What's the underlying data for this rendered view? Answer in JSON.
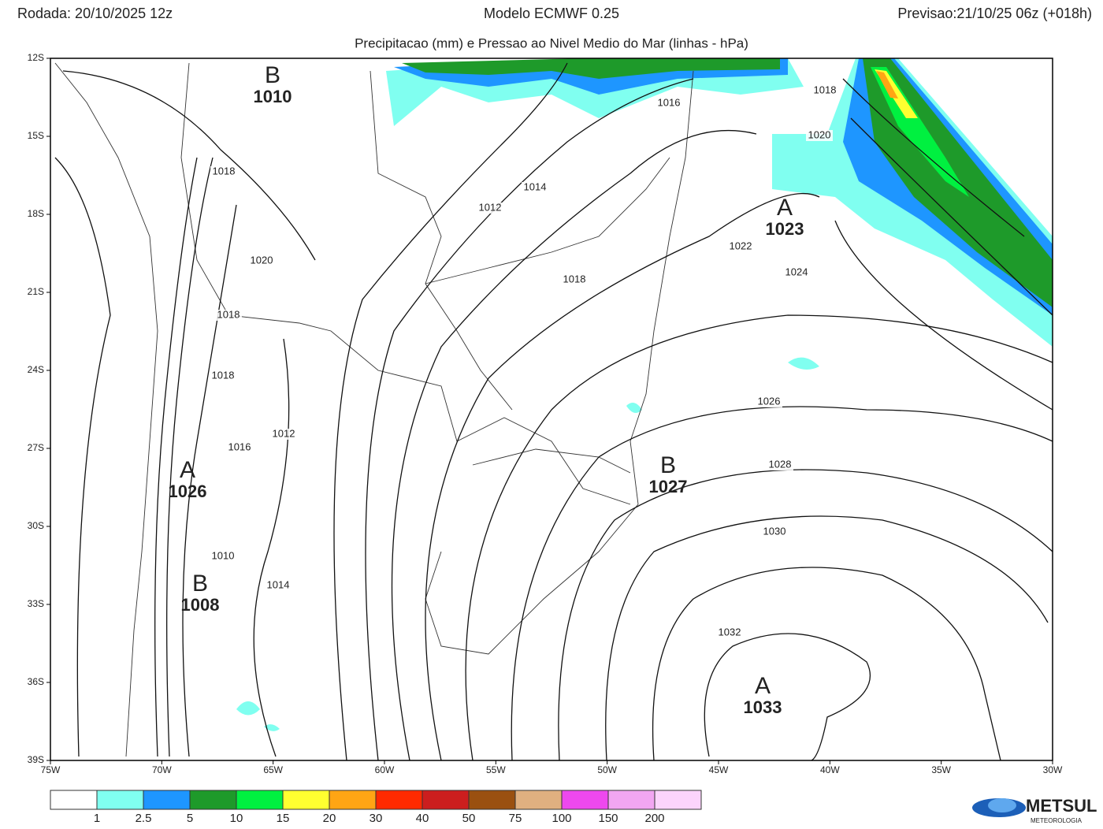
{
  "header": {
    "run": "Rodada: 20/10/2025 12z",
    "model": "Modelo ECMWF 0.25",
    "forecast": "Previsao:21/10/25 06z (+018h)",
    "subtitle": "Precipitacao (mm) e Pressao ao Nivel Medio do Mar (linhas - hPa)"
  },
  "map": {
    "lat_labels": [
      "12S",
      "15S",
      "18S",
      "21S",
      "24S",
      "27S",
      "30S",
      "33S",
      "36S",
      "39S"
    ],
    "lon_labels": [
      "75W",
      "70W",
      "65W",
      "60W",
      "55W",
      "50W",
      "45W",
      "40W",
      "35W",
      "30W"
    ],
    "isobar_labels": [
      1018,
      1016,
      1020,
      1014,
      1012,
      1018,
      1020,
      1018,
      1022,
      1024,
      1018,
      1018,
      1026,
      1012,
      1016,
      1028,
      1030,
      1010,
      1014,
      1032
    ],
    "centers": [
      {
        "symbol": "B",
        "value": 1010
      },
      {
        "symbol": "A",
        "value": 1023
      },
      {
        "symbol": "A",
        "value": 1026
      },
      {
        "symbol": "B",
        "value": 1027
      },
      {
        "symbol": "B",
        "value": 1008
      },
      {
        "symbol": "A",
        "value": 1033
      }
    ]
  },
  "legend": {
    "colors": [
      "#ffffff",
      "#80fff0",
      "#1e96ff",
      "#1e9a2a",
      "#00f040",
      "#ffff30",
      "#ffa514",
      "#ff2a00",
      "#cc1e1e",
      "#9a5010",
      "#e0b080",
      "#ee48ee",
      "#f2a6f2",
      "#fcd4fc"
    ],
    "labels": [
      1,
      2.5,
      5,
      10,
      15,
      20,
      30,
      40,
      50,
      75,
      100,
      150,
      200
    ]
  },
  "logo": {
    "name": "METSUL",
    "tagline": "METEOROLOGIA"
  }
}
